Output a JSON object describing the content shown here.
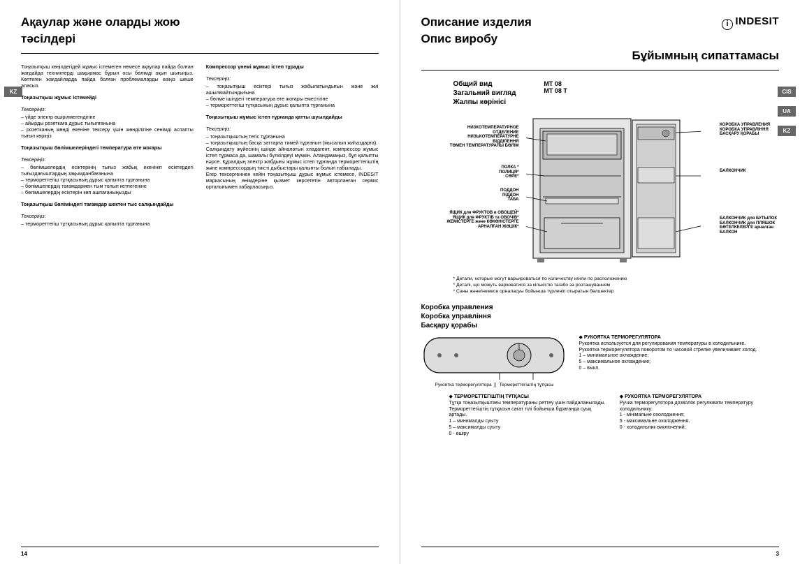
{
  "left": {
    "title1": "Ақаулар және оларды жою",
    "title2": "тәсілдері",
    "lang_tab": "KZ",
    "col1": {
      "p1": "Тоңазытқыш көңілдегідей жұмыс істемеген немесе ақаулар пайда болған жағдайда техниктерді шақырмас бұрын осы бөлімді оқып шығыңыз. Көптеген жағдайларда пайда болған проблемаларды өзіңіз шеше аласыз.",
      "h1": "Тоңазытқыш жұмыс істемейді",
      "i1": "Тексеріңіз:",
      "p2": "– үйде электр өшірілмегендігіне\n– айырды розеткаға дұрыс тығылғанына\n– розетканың жөнді екеніне тексеру үшін жөнділігіне сенімді аспапты тығып көріңіз",
      "h2": "Тоңазытқыш бөлімшелеріндегі температура өте жоғары",
      "i2": "Тексеріңіз:",
      "p3": "– бөлімшелердің есіктерінің тығыз жабық екенініп есіктердегі тығыздағыштардың зақымданбағанына\n– термореттегіш тұтқасының дұрыс қалыпта тұрғанына\n– бөлімшелердің тағамдармен тым толып кетпегеніне\n– бөлімшелердің есіктерін көп ашпағаныңызды",
      "h3": "Тоңазытқыш бөліміндегі тағамдар шектен тыс салқындайды",
      "i3": "Тексеріңіз:",
      "p4": "– термореттегіш тұтқасының дұрыс қалыпта тұрғанына"
    },
    "col2": {
      "h1": "Компрессор үнемі жұмыс істеп тұрады",
      "i1": "Тексеріңіз:",
      "p1": "– тоңазытқыш есіктері тығыз жабылатындығын және жиі ашылмайтындығына\n– бөлме ішіндегі температура өте жоғары еместігіне\n– термореттегіш тұтқасының дұрыс қалыпта тұрғанына",
      "h2": "Тоңазытқыш жұмыс істеп тұрғанда қатты шуылдайды",
      "i2": "Тексеріңіз:",
      "p2": "– тоңазытқыштың тегіс тұрғанына\n– тоңазытқыштың басқа заттарға тимей тұрғанын (мысалып жиһаздарға).\nСалқындату жүйесінің ішінде айналатын хладагент, компрессор жұмыс істеп тұрмаса да, шамалы бүлкілдеуі мүмкін. Аландамаңыз, бұл қалыпты нәрсе. Құралдың электр жабдығы жұмыс істеп тұрғанда термореттегіштің және компрессордың тиісті дыбыстары қалыпты болып табылады.\nЕгер тексергеннен кейін тоңазытқыш дұрыс жұмыс істемесе, INDESIT маркасының өнімдеріне қызмет көрсететін авторланған сервис орталығымен хабарласыңыз."
    },
    "pagenum": "14"
  },
  "right": {
    "brand": "INDESIT",
    "title1": "Описание изделия",
    "title2": "Опис виробу",
    "title3": "Бұйымның сипаттамасы",
    "lang_tabs": [
      "CIS",
      "UA",
      "KZ"
    ],
    "view": {
      "h1": "Общий вид",
      "h2": "Загальний вигляд",
      "h3": "Жалпы көрінісі",
      "m1": "MT 08",
      "m2": "MT 08 T"
    },
    "labels_left": [
      "НИЗКОТЕМПЕРАТУРНОЕ ОТДЕЛЕНИЕ\nНИЗЬКОТЕМПЕРАТУРНЕ ВІДДІЛЕННЯ\nТӨМЕН ТЕМПЕРАТУРАЛЫ БӨЛІМ",
      "ПОЛКА *\nПОЛИЦЯ*\nСӨРЕ*",
      "ПОДДОН\nПІДДОН\nТАБА",
      "ЯЩИК для ФРУКТОВ и ОВОЩЕЙ*\nЯЩИК для ФРУКТІВ та ОВОЧІВ*\nЖЕМІСТЕРГЕ және КӨКӨНІСТЕРГЕ АРНАЛҒАН ЖӘШІК*"
    ],
    "labels_right": [
      "КОРОБКА УПРАВЛЕНИЯ\nКОРОБКА УПРАВЛІННЯ\nБАСҚАРУ ҚОРАБЫ",
      "БАЛКОНЧИК",
      "БАЛКОНЧИК для БУТЫЛОК\nБАЛКОНЧИК для ПЛЯШОК\nБӨТЕЛКЕЛЕРГЕ арналған БАЛКОН"
    ],
    "footnotes": [
      "* Детали, которые могут варьироваться по количеству и/или по расположению",
      "* Деталі, що можуть варіюватися за кількістю та/або за розташуванням",
      "* Саны және/немесе орналасуы бойынша түрленіп отыратын бөлшектер"
    ],
    "control_head": [
      "Коробка управления",
      "Коробка управління",
      "Басқару қорабы"
    ],
    "knob_caption_l": "Рукоятка терморегулятора",
    "knob_caption_r": "Термореттегіштің тұтқасы",
    "box1": {
      "t": "РУКОЯТКА ТЕРМОРЕГУЛЯТОРА",
      "p": "Рукоятка используется для регулирования температуры в холодильнике.\nРукоятка терморегулятора поворотом по часовой стрелке увеличивает холод.\n1 – минимальное охлаждение;\n5 – максимальное охлаждение;\n0 – выкл."
    },
    "box2": {
      "t": "ТЕРМОРЕТТЕГІШТІҢ ТҰТҚАСЫ",
      "p": "Тұтқа тоңазытқыштағы температураны реттеу үшін пайдаланылады.\nТермореттегіштің тұтқасын сағат тілі бойынша бұрағанда суық артады.\n1 – минималды суыту\n5 – максималды суыту\n0 - өшіру"
    },
    "box3": {
      "t": "РУКОЯТКА ТЕРМОРЕГУЛЯТОРА",
      "p": "Ручка терморегулятора дозволяє регулювати температуру холодильнику:\n1 - мінімальне охолодження;\n5 - максимальне охолодження.\n0 - холодильник виключений;"
    },
    "pagenum": "3"
  },
  "colors": {
    "text": "#000000",
    "tab_bg": "#666666",
    "tab_fg": "#ffffff",
    "rule": "#000000"
  }
}
